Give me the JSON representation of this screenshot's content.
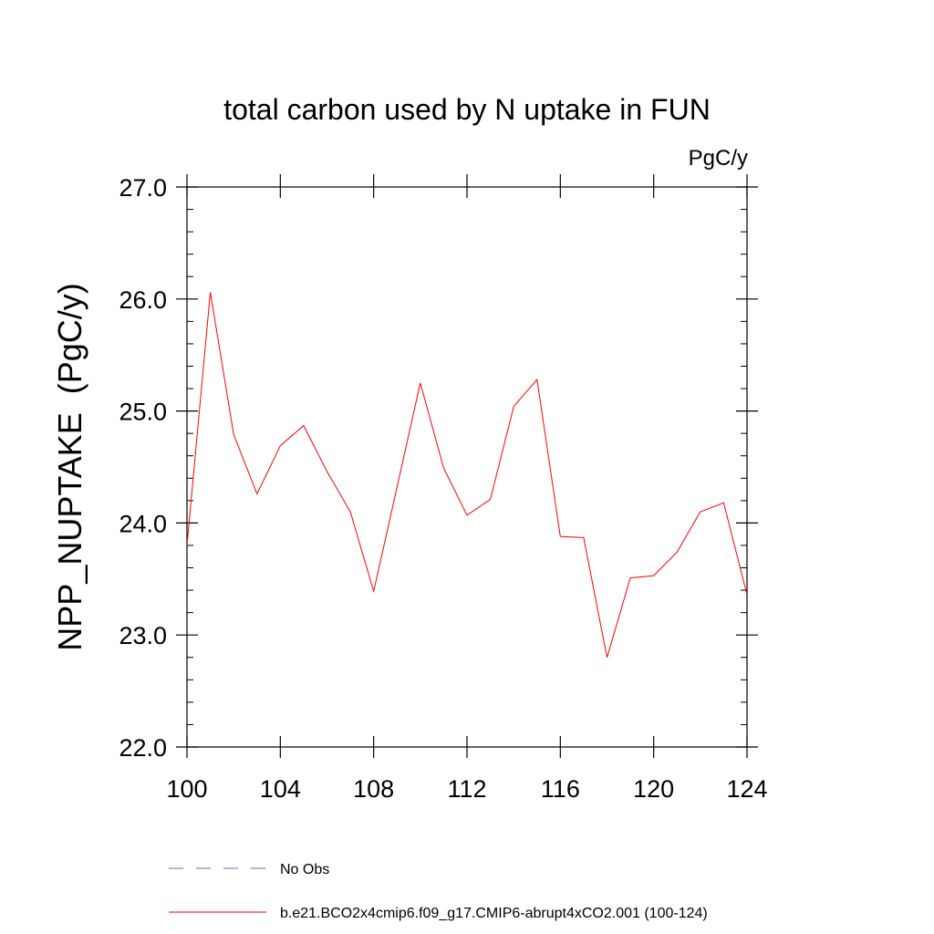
{
  "chart_data": {
    "type": "line",
    "title": "total carbon used by N uptake in FUN",
    "units_label": "PgC/y",
    "ylabel": "NPP_NUPTAKE  (PgC/y)",
    "xlabel": "",
    "xlim": [
      100,
      124
    ],
    "ylim": [
      22.0,
      27.0
    ],
    "x_ticks": [
      100,
      104,
      108,
      112,
      116,
      120,
      124
    ],
    "x_tick_labels": [
      "100",
      "104",
      "108",
      "112",
      "116",
      "120",
      "124"
    ],
    "y_ticks": [
      22.0,
      23.0,
      24.0,
      25.0,
      26.0,
      27.0
    ],
    "y_tick_labels": [
      "22.0",
      "23.0",
      "24.0",
      "25.0",
      "26.0",
      "27.0"
    ],
    "grid": false,
    "legend_position": "bottom-left",
    "series": [
      {
        "name": "b.e21.BCO2x4cmip6.f09_g17.CMIP6-abrupt4xCO2.001 (100-124)",
        "color": "#ff0000",
        "dash": "solid",
        "x": [
          100,
          101,
          102,
          103,
          104,
          105,
          106,
          107,
          108,
          109,
          110,
          111,
          112,
          113,
          114,
          115,
          116,
          117,
          118,
          119,
          120,
          121,
          122,
          123,
          124
        ],
        "values": [
          23.8,
          26.06,
          24.79,
          24.26,
          24.69,
          24.87,
          24.46,
          24.1,
          23.39,
          24.32,
          25.25,
          24.49,
          24.07,
          24.21,
          25.04,
          25.28,
          23.88,
          23.87,
          22.8,
          23.51,
          23.53,
          23.74,
          24.1,
          24.18,
          23.36
        ]
      }
    ],
    "legend": [
      {
        "label": "No Obs",
        "color": "#6a6ab8",
        "dash": "dashed"
      },
      {
        "label": "b.e21.BCO2x4cmip6.f09_g17.CMIP6-abrupt4xCO2.001 (100-124)",
        "color": "#ff0000",
        "dash": "solid"
      }
    ]
  }
}
